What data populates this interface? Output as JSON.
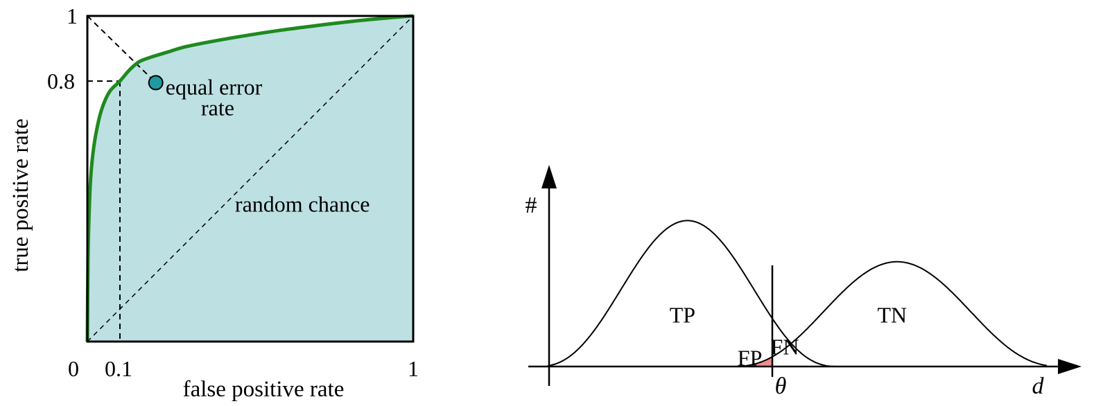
{
  "chart_data": [
    {
      "type": "line",
      "xlabel": "false positive rate",
      "ylabel": "true positive rate",
      "xlim": [
        0,
        1
      ],
      "ylim": [
        0,
        1
      ],
      "x_tick_labels": [
        "0",
        "0.1",
        "1"
      ],
      "x_ticks": [
        0,
        0.1,
        1
      ],
      "y_tick_labels": [
        "0.8",
        "1"
      ],
      "y_ticks": [
        0.8,
        1
      ],
      "series": [
        {
          "x": [
            0,
            0.002,
            0.005,
            0.01,
            0.02,
            0.035,
            0.05,
            0.07,
            0.1,
            0.13,
            0.16,
            0.2,
            0.25,
            0.3,
            0.4,
            0.5,
            0.6,
            0.7,
            0.8,
            0.9,
            1.0
          ],
          "y": [
            0,
            0.25,
            0.38,
            0.5,
            0.6,
            0.68,
            0.73,
            0.77,
            0.8,
            0.835,
            0.86,
            0.875,
            0.89,
            0.905,
            0.925,
            0.942,
            0.957,
            0.97,
            0.982,
            0.992,
            1.0
          ],
          "color": "#1f8a1f"
        }
      ],
      "area_fill_color": "#bde0e3",
      "marker": {
        "x": 0.21,
        "y": 0.795,
        "color": "#1e9aa0"
      },
      "annotations": [
        {
          "text": "equal error",
          "x": 0.24,
          "y": 0.78
        },
        {
          "text": "rate",
          "x": 0.4,
          "y": 0.72
        },
        {
          "text": "random chance",
          "x": 0.66,
          "y": 0.42
        }
      ],
      "reference_lines": [
        "diagonal-random-chance",
        "anti-diagonal-equal-error",
        "threshold-at-fpr-0.1-tpr-0.8"
      ]
    },
    {
      "type": "line",
      "xlabel": "d",
      "ylabel": "#",
      "threshold_label": "θ",
      "series": [
        {
          "distribution": "positive",
          "mean": 0.28,
          "height": 0.78,
          "color": "#000000"
        },
        {
          "distribution": "negative",
          "mean": 0.7,
          "height": 0.56,
          "color": "#000000"
        }
      ],
      "threshold": 0.45,
      "region_labels": [
        {
          "text": "TP",
          "x": 0.27,
          "y": 0.28
        },
        {
          "text": "TN",
          "x": 0.69,
          "y": 0.28
        },
        {
          "text": "FP",
          "x": 0.405,
          "y": 0.05
        },
        {
          "text": "FN",
          "x": 0.475,
          "y": 0.11
        }
      ],
      "fp_fill_color": "#f28b8b"
    }
  ]
}
